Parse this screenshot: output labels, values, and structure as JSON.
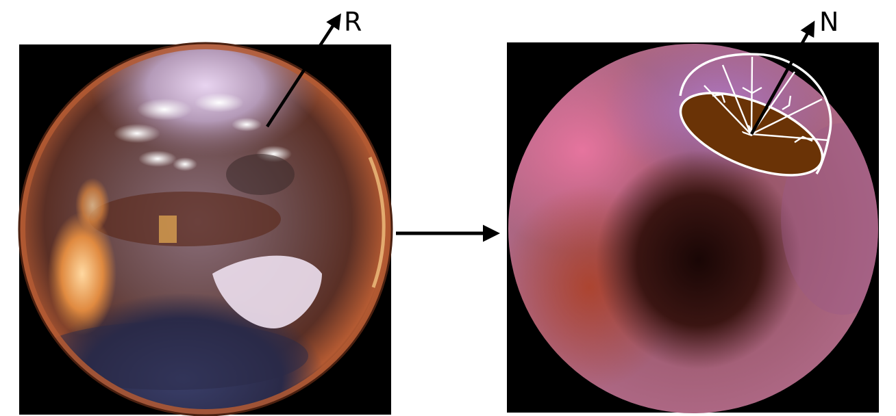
{
  "panels": {
    "left": {
      "arrow_label": "R"
    },
    "right": {
      "arrow_label": "N"
    }
  },
  "colors": {
    "panel_background": "#000000",
    "page_background": "#ffffff",
    "arrow": "#000000",
    "hemisphere_outline": "#ffffff",
    "hemisphere_base": "#6a3306",
    "mirror_ball_rim": "#b45a32",
    "irradiance_pink": "#e6749e",
    "irradiance_lilac": "#b47cc8",
    "irradiance_dark": "#190605"
  }
}
